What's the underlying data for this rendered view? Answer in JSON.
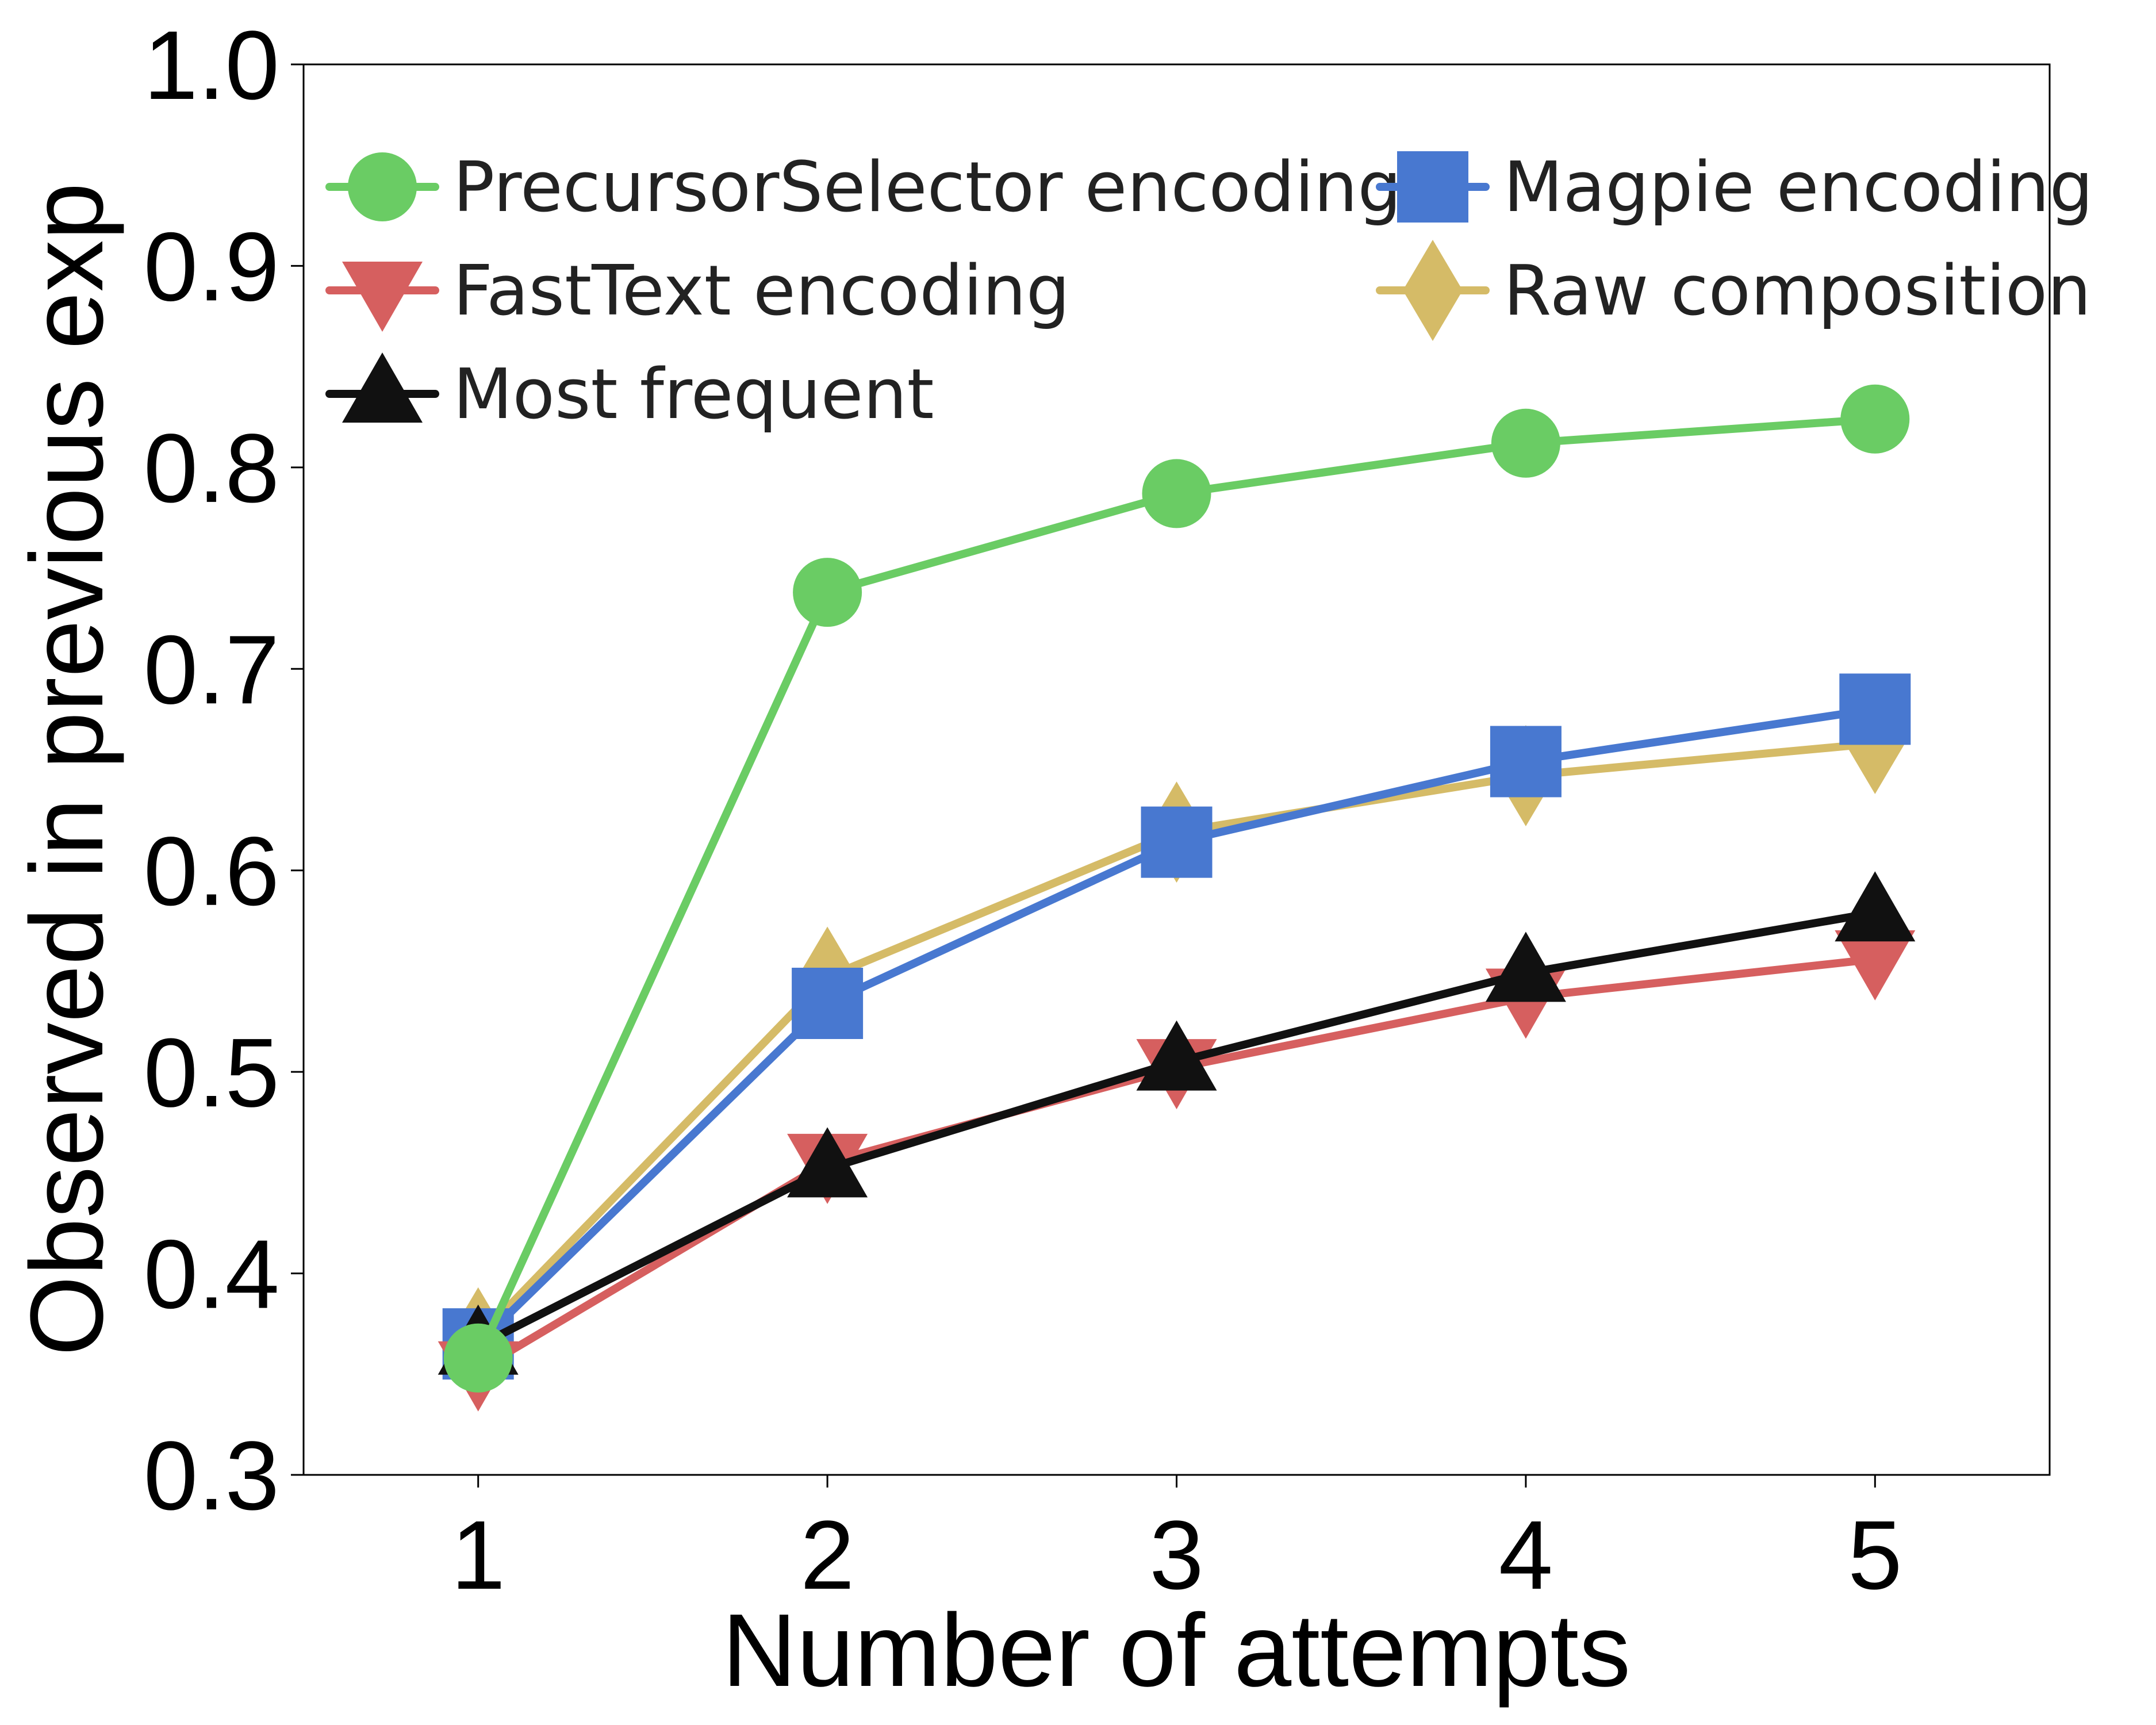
{
  "chart_data": {
    "type": "line",
    "title": "",
    "xlabel": "Number of attempts",
    "ylabel": "Observed in previous exp",
    "x": [
      1,
      2,
      3,
      4,
      5
    ],
    "xlim": [
      0.5,
      5.5
    ],
    "ylim": [
      0.3,
      1.0
    ],
    "yticks": [
      "0.3",
      "0.4",
      "0.5",
      "0.6",
      "0.7",
      "0.8",
      "0.9",
      "1.0"
    ],
    "xticks": [
      "1",
      "2",
      "3",
      "4",
      "5"
    ],
    "grid": false,
    "legend_position": "top",
    "series": [
      {
        "name": "PrecursorSelector encoding",
        "key": "precursorselector",
        "color": "#6acc64",
        "marker": "circle",
        "values": [
          0.358,
          0.738,
          0.787,
          0.812,
          0.824
        ]
      },
      {
        "name": "FastText encoding",
        "key": "fasttext",
        "color": "#d65f5f",
        "marker": "triangle-down",
        "values": [
          0.352,
          0.455,
          0.502,
          0.537,
          0.556
        ]
      },
      {
        "name": "Most frequent",
        "key": "most-frequent",
        "color": "#111111",
        "marker": "triangle-up",
        "values": [
          0.364,
          0.452,
          0.505,
          0.549,
          0.579
        ]
      },
      {
        "name": "Magpie encoding",
        "key": "magpie",
        "color": "#4878d0",
        "marker": "square",
        "values": [
          0.365,
          0.534,
          0.614,
          0.654,
          0.68
        ]
      },
      {
        "name": "Raw composition",
        "key": "raw-composition",
        "color": "#d5bb67",
        "marker": "diamond",
        "values": [
          0.368,
          0.547,
          0.619,
          0.647,
          0.663
        ]
      }
    ]
  }
}
